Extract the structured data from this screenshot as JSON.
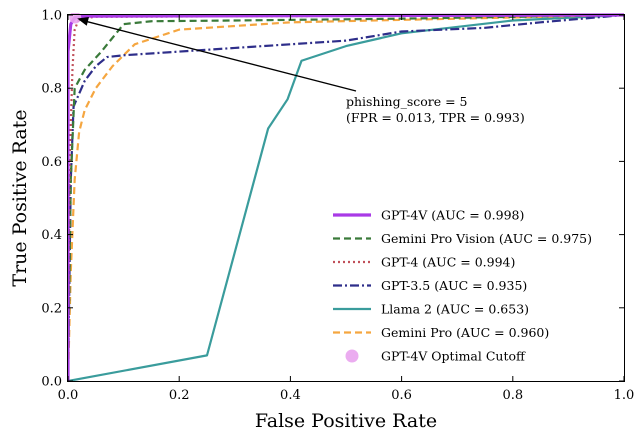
{
  "chart_data": {
    "type": "line",
    "title": "",
    "xlabel": "False Positive Rate",
    "ylabel": "True Positive Rate",
    "xlim": [
      0.0,
      1.0
    ],
    "ylim": [
      0.0,
      1.0
    ],
    "xticks": [
      "0.0",
      "0.2",
      "0.4",
      "0.6",
      "0.8",
      "1.0"
    ],
    "yticks": [
      "0.0",
      "0.2",
      "0.4",
      "0.6",
      "0.8",
      "1.0"
    ],
    "grid": false,
    "legend_position": "lower-right",
    "series": [
      {
        "name": "GPT-4V (AUC = 0.998)",
        "color": "#a93ae6",
        "dash": "solid",
        "width": 3.2,
        "points": [
          [
            0,
            0
          ],
          [
            0,
            0.9
          ],
          [
            0.005,
            0.975
          ],
          [
            0.01,
            0.988
          ],
          [
            0.013,
            0.993
          ],
          [
            0.03,
            0.997
          ],
          [
            1,
            1
          ]
        ]
      },
      {
        "name": "Gemini Pro Vision (AUC = 0.975)",
        "color": "#3a7a3a",
        "dash": "dash",
        "width": 2.2,
        "points": [
          [
            0,
            0
          ],
          [
            0.005,
            0.55
          ],
          [
            0.012,
            0.8
          ],
          [
            0.03,
            0.85
          ],
          [
            0.06,
            0.9
          ],
          [
            0.1,
            0.975
          ],
          [
            0.15,
            0.983
          ],
          [
            0.3,
            0.985
          ],
          [
            0.6,
            0.99
          ],
          [
            1,
            1
          ]
        ]
      },
      {
        "name": "GPT-4 (AUC = 0.994)",
        "color": "#c0505a",
        "dash": "dot",
        "width": 2.2,
        "points": [
          [
            0,
            0
          ],
          [
            0.003,
            0.6
          ],
          [
            0.008,
            0.85
          ],
          [
            0.012,
            0.96
          ],
          [
            0.02,
            0.99
          ],
          [
            0.05,
            0.995
          ],
          [
            1,
            1
          ]
        ]
      },
      {
        "name": "GPT-3.5 (AUC = 0.935)",
        "color": "#2e2e8a",
        "dash": "dashdot",
        "width": 2.2,
        "points": [
          [
            0,
            0
          ],
          [
            0.005,
            0.55
          ],
          [
            0.01,
            0.75
          ],
          [
            0.03,
            0.82
          ],
          [
            0.05,
            0.86
          ],
          [
            0.07,
            0.885
          ],
          [
            0.1,
            0.89
          ],
          [
            0.3,
            0.91
          ],
          [
            0.5,
            0.93
          ],
          [
            0.6,
            0.955
          ],
          [
            0.75,
            0.965
          ],
          [
            0.85,
            0.98
          ],
          [
            1,
            1
          ]
        ]
      },
      {
        "name": "Llama 2 (AUC = 0.653)",
        "color": "#3a9c9c",
        "dash": "solid",
        "width": 2.2,
        "points": [
          [
            0,
            0
          ],
          [
            0.25,
            0.07
          ],
          [
            0.36,
            0.69
          ],
          [
            0.395,
            0.77
          ],
          [
            0.42,
            0.875
          ],
          [
            0.5,
            0.915
          ],
          [
            0.6,
            0.95
          ],
          [
            0.8,
            0.985
          ],
          [
            1,
            1
          ]
        ]
      },
      {
        "name": "Gemini Pro (AUC = 0.960)",
        "color": "#f5a640",
        "dash": "dash",
        "width": 2.2,
        "points": [
          [
            0,
            0
          ],
          [
            0.005,
            0.3
          ],
          [
            0.012,
            0.55
          ],
          [
            0.02,
            0.68
          ],
          [
            0.03,
            0.74
          ],
          [
            0.05,
            0.8
          ],
          [
            0.08,
            0.86
          ],
          [
            0.12,
            0.92
          ],
          [
            0.2,
            0.96
          ],
          [
            0.4,
            0.98
          ],
          [
            0.7,
            0.99
          ],
          [
            1,
            1
          ]
        ]
      }
    ],
    "cutoff_marker": {
      "name": "GPT-4V Optimal Cutoff",
      "color": "#e9a3ee",
      "x": 0.013,
      "y": 0.993
    },
    "annotation": {
      "lines": [
        "phishing_score = 5",
        "(FPR = 0.013, TPR = 0.993)"
      ],
      "target": {
        "x": 0.013,
        "y": 0.993
      },
      "text_anchor": {
        "x": 0.52,
        "y": 0.8
      }
    }
  }
}
